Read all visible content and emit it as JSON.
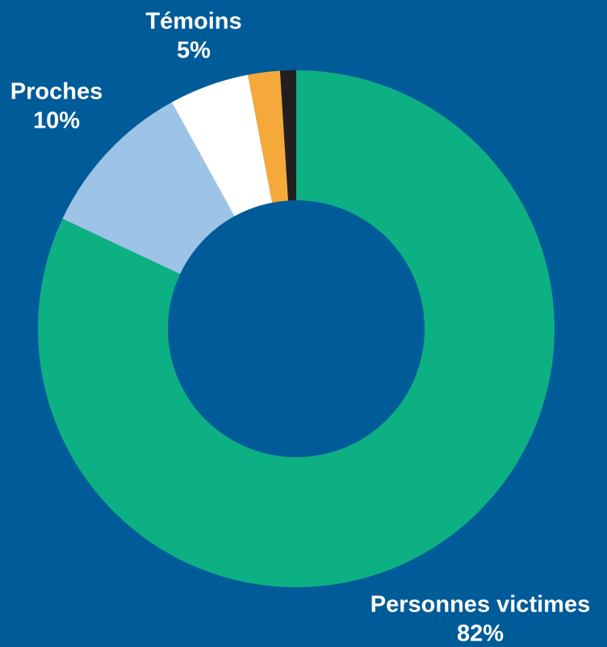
{
  "chart_data": {
    "type": "donut",
    "categories": [
      "Personnes victimes",
      "Proches",
      "Témoins",
      null,
      null
    ],
    "values": [
      82,
      10,
      5,
      2,
      1
    ],
    "value_labels": [
      "82%",
      "10%",
      "5%",
      null,
      null
    ],
    "colors": [
      "#0db083",
      "#9dc3e6",
      "#ffffff",
      "#f5a93a",
      "#231f20"
    ]
  }
}
